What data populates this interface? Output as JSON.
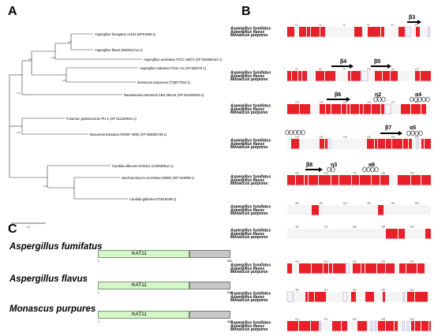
{
  "panels": {
    "a": "A",
    "b": "B",
    "c": "C"
  },
  "tree": {
    "taxa": [
      "Aspergillus fumigatus A1163 (DP01698.1)",
      "Aspergillus flavus (RMZ42713.1)",
      "Aspergillus aculeatus ATCC 16872 (XP 020056104.1)",
      "Aspergillus nidulans FGSC A4 (XP 682076.1)",
      "Monascus purpureus (TQB77332.1)",
      "Rasamsonia emersonii CBS 393.64 (XP 013328429.1)",
      "Fusarium graminearum PH-1 (XP 011320810.1)",
      "Beauveria bassiana ARSEF 2860 (XP 008602729.1)",
      "Candida albicans SC5314 (AOW30812.1)",
      "Saccharomyces cerevisiae S288C (NP 013099.1)",
      "Candida glabrata (KTB15348.1)"
    ],
    "bootstrap": [
      "100",
      "100",
      "100",
      "100",
      "100",
      "100",
      "100"
    ],
    "scale_label": "0.1"
  },
  "alignment": {
    "species": [
      "Aspergillus fumifatus",
      "Aspergillus flavus",
      "Monascus purpures"
    ],
    "structure_labels": {
      "b3": "β3",
      "b4": "β4",
      "b5": "β5",
      "b6": "β6",
      "n2": "η2",
      "a4": "α4",
      "b7": "β7",
      "a5": "α5",
      "b8": "β8",
      "n3": "η3",
      "a6": "α6"
    },
    "position_numbers": [
      [
        "10",
        "20",
        "30",
        "40",
        "50",
        "60"
      ],
      [
        "70",
        "80",
        "90",
        "100",
        "110",
        "120"
      ],
      [
        "130",
        "140",
        "150",
        "160",
        "170",
        "180"
      ],
      [
        "190",
        "200",
        "210",
        "220",
        "230",
        "240"
      ],
      [
        "250",
        "260",
        "270",
        "280",
        "290"
      ],
      [
        "300",
        "310",
        "320",
        "330",
        "340",
        "350"
      ],
      [
        "360",
        "370",
        "380",
        "390",
        "400"
      ],
      [
        "410",
        "420",
        "430",
        "440",
        "450"
      ],
      [
        "460",
        "470",
        "480",
        "490",
        "500"
      ],
      [
        "510",
        "520",
        "530",
        "540",
        "550"
      ]
    ]
  },
  "domains": {
    "rows": [
      {
        "species": "Aspergillus fumifatus",
        "domain": "KAT11",
        "start": "1",
        "end": "560"
      },
      {
        "species": "Aspergillus flavus",
        "domain": "KAT11",
        "start": "1",
        "end": "564"
      },
      {
        "species": "Monascus purpures",
        "domain": "KAT11",
        "start": "1",
        "end": "565"
      }
    ]
  },
  "colors": {
    "conserved_red": "#e8202a",
    "similar_pink": "#b9a4e3",
    "domain_green": "#d4f6c9",
    "tail_grey": "#c8c8c8"
  }
}
